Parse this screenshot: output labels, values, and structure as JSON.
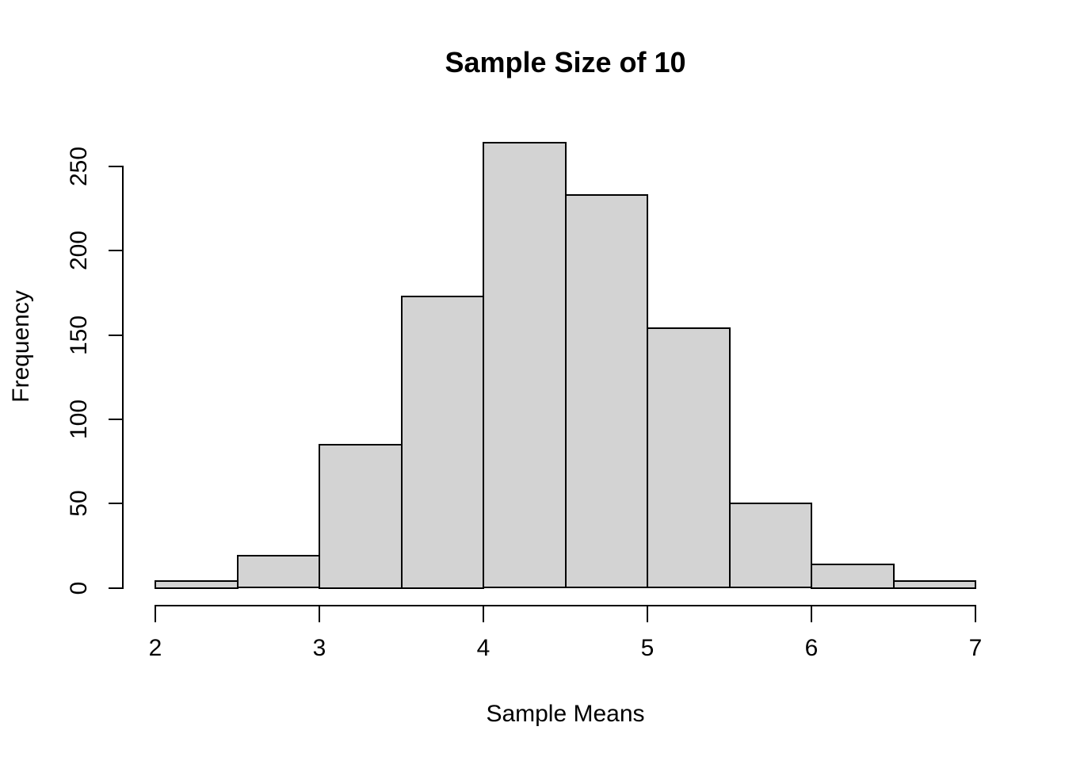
{
  "chart_data": {
    "type": "bar",
    "subtype": "histogram",
    "title": "Sample Size of 10",
    "xlabel": "Sample Means",
    "ylabel": "Frequency",
    "bin_edges": [
      2.0,
      2.5,
      3.0,
      3.5,
      4.0,
      4.5,
      5.0,
      5.5,
      6.0,
      6.5,
      7.0
    ],
    "bin_width": 0.5,
    "values": [
      4,
      19,
      85,
      173,
      264,
      233,
      154,
      50,
      14,
      4
    ],
    "x_ticks": [
      2,
      3,
      4,
      5,
      6,
      7
    ],
    "y_ticks": [
      0,
      50,
      100,
      150,
      200,
      250
    ],
    "xlim": [
      2,
      7
    ],
    "ylim": [
      0,
      265
    ],
    "grid": false,
    "legend": null,
    "colors": {
      "bar_fill": "#d3d3d3",
      "bar_border": "#000000",
      "axis": "#000000",
      "text": "#000000",
      "background": "#ffffff"
    }
  }
}
